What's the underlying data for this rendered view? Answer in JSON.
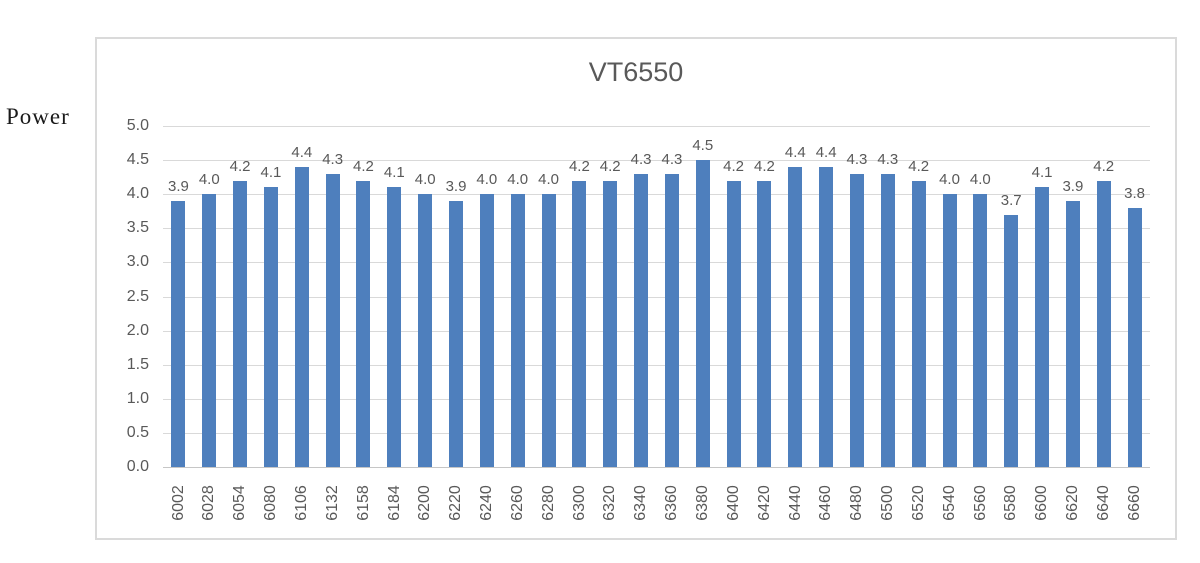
{
  "chart_data": {
    "type": "bar",
    "title": "VT6550",
    "ylabel": "Power",
    "xlabel": "",
    "categories": [
      "6002",
      "6028",
      "6054",
      "6080",
      "6106",
      "6132",
      "6158",
      "6184",
      "6200",
      "6220",
      "6240",
      "6260",
      "6280",
      "6300",
      "6320",
      "6340",
      "6360",
      "6380",
      "6400",
      "6420",
      "6440",
      "6460",
      "6480",
      "6500",
      "6520",
      "6540",
      "6560",
      "6580",
      "6600",
      "6620",
      "6640",
      "6660"
    ],
    "values": [
      3.9,
      4.0,
      4.2,
      4.1,
      4.4,
      4.3,
      4.2,
      4.1,
      4.0,
      3.9,
      4.0,
      4.0,
      4.0,
      4.2,
      4.2,
      4.3,
      4.3,
      4.5,
      4.2,
      4.2,
      4.4,
      4.4,
      4.3,
      4.3,
      4.2,
      4.0,
      4.0,
      3.7,
      4.1,
      3.9,
      4.2,
      3.8
    ],
    "data_labels_shown": true,
    "data_label_decimals": 1,
    "ylim": [
      0.0,
      5.0
    ],
    "ytick_labels": [
      "0.0",
      "0.5",
      "1.0",
      "1.5",
      "2.0",
      "2.5",
      "3.0",
      "3.5",
      "4.0",
      "4.5",
      "5.0"
    ],
    "grid": true,
    "legend_position": "none",
    "colors": {
      "bar_fill": "#4e7fbd",
      "text_gray": "#595959",
      "gridline": "#d9d9d9",
      "frame_border": "#dadada",
      "axis_caption_text": "#1a1a1a",
      "background": "#ffffff"
    }
  }
}
